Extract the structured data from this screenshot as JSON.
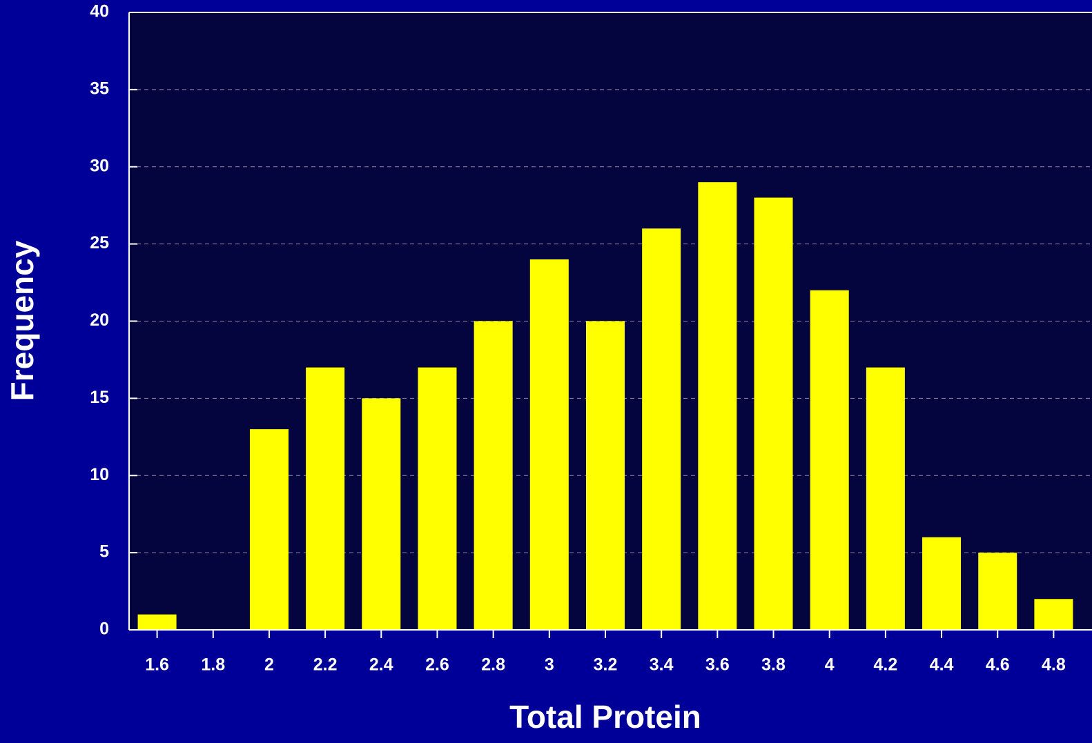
{
  "chart_data": {
    "type": "bar",
    "x_label": "Total Protein",
    "y_label": "Frequency",
    "categories": [
      "1.6",
      "1.8",
      "2",
      "2.2",
      "2.4",
      "2.6",
      "2.8",
      "3",
      "3.2",
      "3.4",
      "3.6",
      "3.8",
      "4",
      "4.2",
      "4.4",
      "4.6",
      "4.8"
    ],
    "values": [
      1,
      0,
      13,
      17,
      15,
      17,
      20,
      24,
      20,
      26,
      29,
      28,
      22,
      17,
      6,
      5,
      2
    ],
    "color": "#ffff00",
    "ylim": [
      0,
      40
    ],
    "yticks": [
      0,
      5,
      10,
      15,
      20,
      25,
      30,
      35,
      40
    ],
    "grid": true
  }
}
